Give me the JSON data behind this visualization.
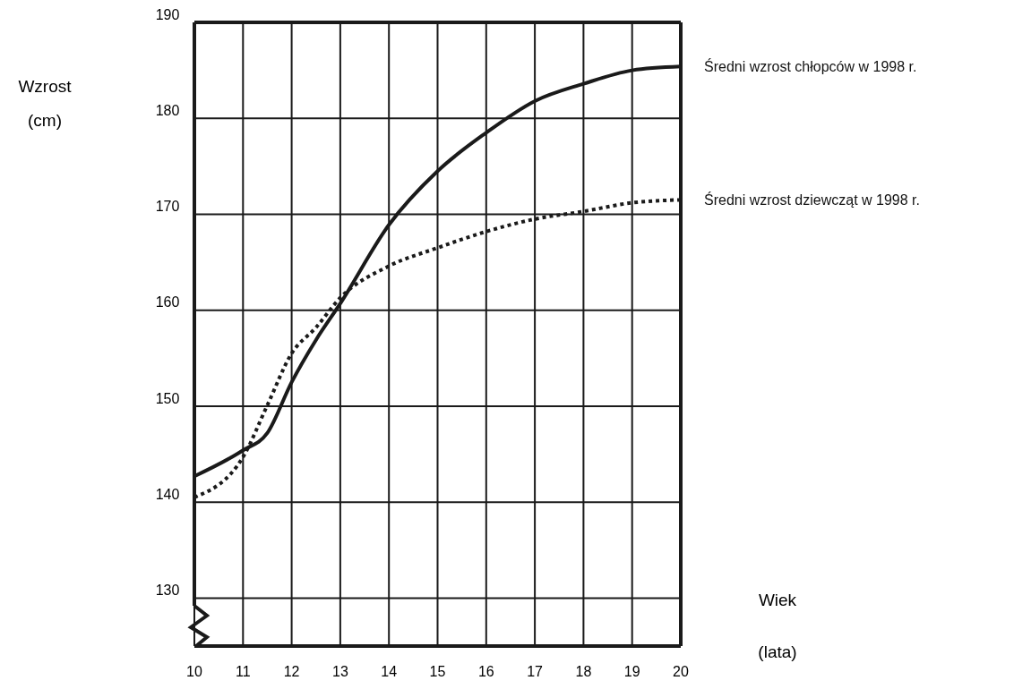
{
  "chart_data": {
    "type": "line",
    "xlabel": "Wiek (lata)",
    "ylabel": "Wzrost (cm)",
    "xlim": [
      10,
      20
    ],
    "xticks": [
      10,
      11,
      12,
      13,
      14,
      15,
      16,
      17,
      18,
      19,
      20
    ],
    "ylim": [
      125,
      190
    ],
    "yticks": [
      130,
      140,
      150,
      160,
      170,
      180,
      190
    ],
    "grid": true,
    "series": [
      {
        "name": "Średni wzrost chłopców w 1998 r.",
        "color": "#1a1a1a",
        "line_style": "solid",
        "x": [
          10,
          11,
          11.5,
          12,
          12.5,
          13,
          14,
          15,
          16,
          17,
          18,
          19,
          20
        ],
        "values": [
          142.7,
          145.4,
          147.2,
          152.5,
          156.9,
          160.7,
          168.9,
          174.5,
          178.5,
          181.8,
          183.6,
          185.0,
          185.4
        ]
      },
      {
        "name": "Średni wzrost dziewcząt w 1998 r.",
        "color": "#1a1a1a",
        "line_style": "dotted",
        "x": [
          10,
          11,
          11.5,
          12,
          12.5,
          13,
          14,
          15,
          16,
          17,
          18,
          19,
          20
        ],
        "values": [
          140.5,
          144.7,
          150.1,
          155.5,
          158.2,
          161.3,
          164.6,
          166.5,
          168.2,
          169.5,
          170.3,
          171.2,
          171.5
        ]
      }
    ]
  }
}
